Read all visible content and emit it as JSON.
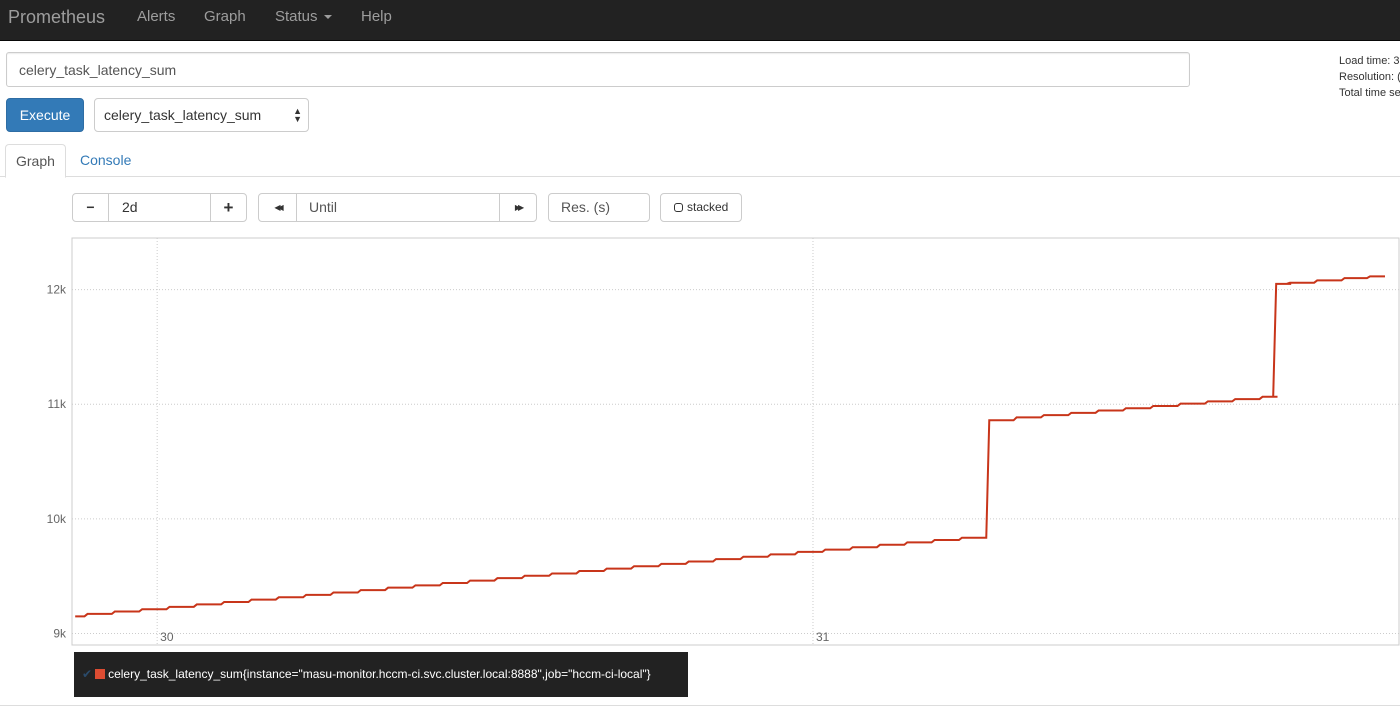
{
  "navbar": {
    "brand": "Prometheus",
    "items": [
      {
        "label": "Alerts"
      },
      {
        "label": "Graph"
      },
      {
        "label": "Status"
      },
      {
        "label": "Help"
      }
    ]
  },
  "query": {
    "expression": "celery_task_latency_sum",
    "execute_label": "Execute",
    "metric_select": "celery_task_latency_sum"
  },
  "stats": {
    "load_time": "Load time: 3",
    "resolution": "Resolution: (",
    "total_series": "Total time se"
  },
  "tabs": [
    {
      "label": "Graph",
      "active": true
    },
    {
      "label": "Console",
      "active": false
    }
  ],
  "controls": {
    "range": "2d",
    "until_placeholder": "Until",
    "res_placeholder": "Res. (s)",
    "stacked_label": "stacked",
    "minus": "−",
    "plus": "+",
    "back": "◀◀",
    "forward": "▶▶"
  },
  "legend": {
    "series_label": "celery_task_latency_sum{instance=\"masu-monitor.hccm-ci.svc.cluster.local:8888\",job=\"hccm-ci-local\"}",
    "color": "#dc4c32"
  },
  "chart_data": {
    "type": "line",
    "ylim": [
      8900,
      12450
    ],
    "y_ticks": [
      "9k",
      "10k",
      "11k",
      "12k"
    ],
    "y_tick_values": [
      9000,
      10000,
      11000,
      12000
    ],
    "x_ticks": [
      "30",
      "31"
    ],
    "x_tick_values": [
      "30 00:00",
      "31 00:00"
    ],
    "xlim": [
      "29 20:53",
      "31 20:56"
    ],
    "grid": true,
    "line_color": "#c8351a",
    "series": [
      {
        "points": [
          [
            "29 21:00",
            9150
          ],
          [
            "29 22:00",
            9171
          ],
          [
            "29 23:00",
            9192
          ],
          [
            "30 00:00",
            9212
          ],
          [
            "30 01:00",
            9233
          ],
          [
            "30 02:00",
            9254
          ],
          [
            "30 03:00",
            9275
          ],
          [
            "30 04:00",
            9296
          ],
          [
            "30 05:00",
            9316
          ],
          [
            "30 06:00",
            9337
          ],
          [
            "30 07:00",
            9358
          ],
          [
            "30 08:00",
            9379
          ],
          [
            "30 09:00",
            9400
          ],
          [
            "30 10:00",
            9420
          ],
          [
            "30 11:00",
            9441
          ],
          [
            "30 12:00",
            9462
          ],
          [
            "30 13:00",
            9483
          ],
          [
            "30 14:00",
            9504
          ],
          [
            "30 15:00",
            9524
          ],
          [
            "30 16:00",
            9545
          ],
          [
            "30 17:00",
            9566
          ],
          [
            "30 18:00",
            9587
          ],
          [
            "30 19:00",
            9608
          ],
          [
            "30 20:00",
            9628
          ],
          [
            "30 21:00",
            9649
          ],
          [
            "30 22:00",
            9670
          ],
          [
            "30 23:00",
            9691
          ],
          [
            "31 00:00",
            9712
          ],
          [
            "31 01:00",
            9732
          ],
          [
            "31 02:00",
            9753
          ],
          [
            "31 03:00",
            9774
          ],
          [
            "31 04:00",
            9795
          ],
          [
            "31 05:00",
            9816
          ],
          [
            "31 06:00",
            9836
          ],
          [
            "31 07:00",
            10860
          ],
          [
            "31 08:00",
            10885
          ],
          [
            "31 09:00",
            10905
          ],
          [
            "31 10:00",
            10925
          ],
          [
            "31 11:00",
            10945
          ],
          [
            "31 12:00",
            10965
          ],
          [
            "31 13:00",
            10985
          ],
          [
            "31 14:00",
            11005
          ],
          [
            "31 15:00",
            11025
          ],
          [
            "31 16:00",
            11045
          ],
          [
            "31 17:00",
            11065
          ],
          [
            "31 17:30",
            12050
          ],
          [
            "31 18:00",
            12060
          ],
          [
            "31 19:00",
            12080
          ],
          [
            "31 20:00",
            12100
          ],
          [
            "31 20:56",
            12115
          ]
        ]
      }
    ]
  }
}
